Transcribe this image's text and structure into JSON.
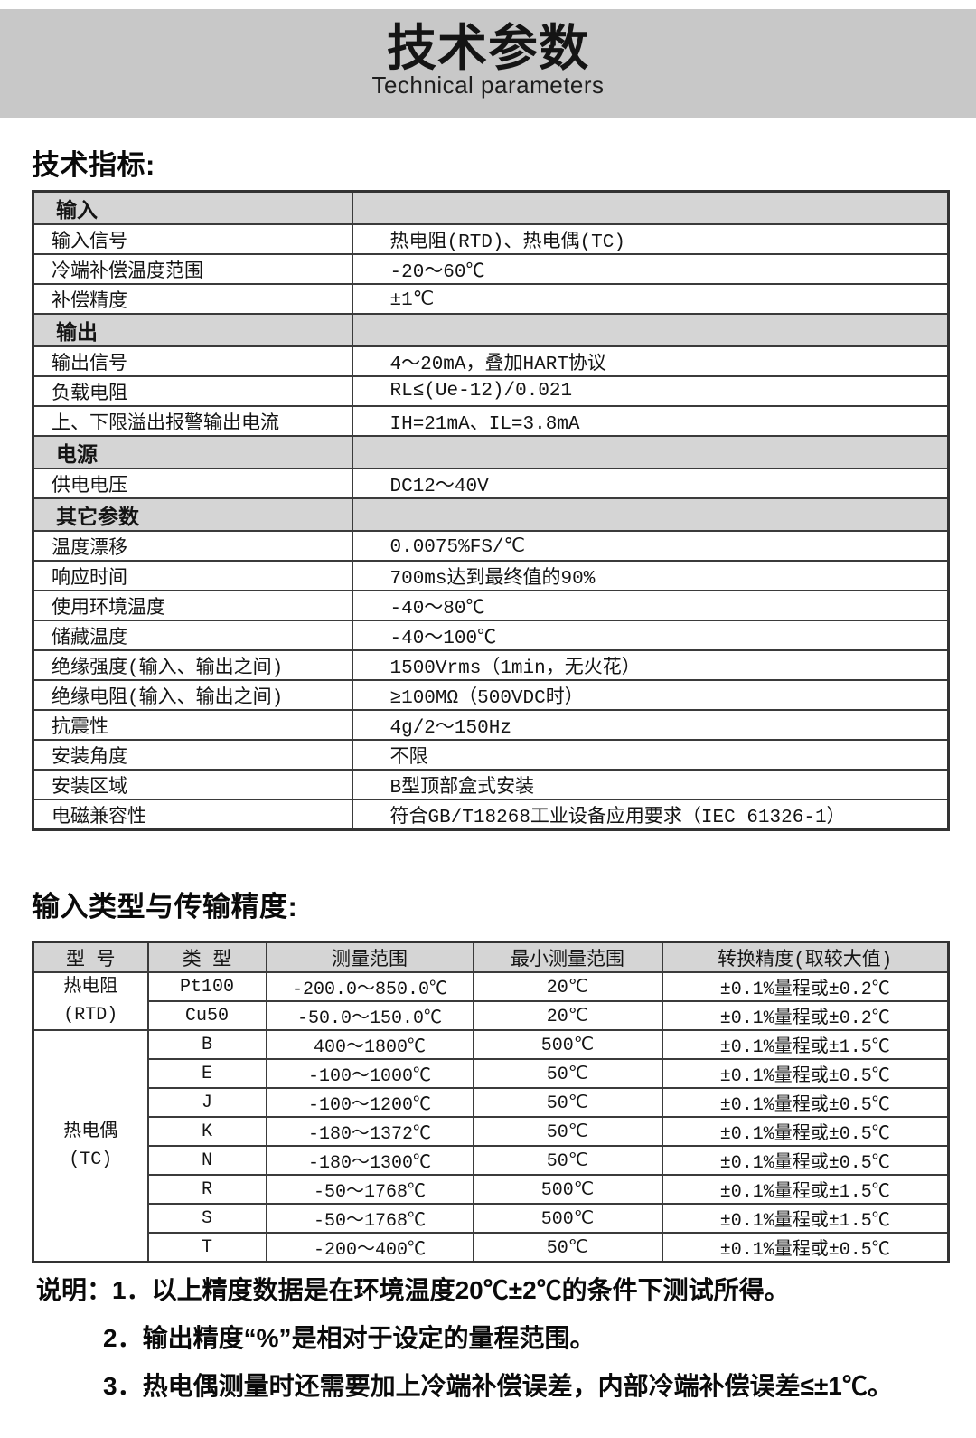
{
  "banner": {
    "title": "技术参数",
    "subtitle": "Technical parameters"
  },
  "headings": {
    "specs": "技术指标:",
    "accuracy": "输入类型与传输精度:"
  },
  "spec_table": {
    "sections": [
      {
        "header": "输入",
        "rows": [
          {
            "label": "输入信号",
            "value": "热电阻(RTD)、热电偶(TC)"
          },
          {
            "label": "冷端补偿温度范围",
            "value": "-20～60℃"
          },
          {
            "label": "补偿精度",
            "value": "±1℃"
          }
        ]
      },
      {
        "header": "输出",
        "rows": [
          {
            "label": "输出信号",
            "value": "4～20mA，叠加HART协议"
          },
          {
            "label": "负载电阻",
            "value": "RL≤(Ue-12)/0.021"
          },
          {
            "label": "上、下限溢出报警输出电流",
            "value": "IH=21mA、IL=3.8mA"
          }
        ]
      },
      {
        "header": "电源",
        "rows": [
          {
            "label": "供电电压",
            "value": "DC12～40V"
          }
        ]
      },
      {
        "header": "其它参数",
        "rows": [
          {
            "label": "温度漂移",
            "value": "0.0075%FS/℃"
          },
          {
            "label": "响应时间",
            "value": "700ms达到最终值的90%"
          },
          {
            "label": "使用环境温度",
            "value": "-40～80℃"
          },
          {
            "label": "储藏温度",
            "value": "-40～100℃"
          },
          {
            "label": "绝缘强度(输入、输出之间)",
            "value": "1500Vrms（1min，无火花）"
          },
          {
            "label": "绝缘电阻(输入、输出之间)",
            "value": "≥100MΩ（500VDC时）"
          },
          {
            "label": "抗震性",
            "value": "4g/2～150Hz"
          },
          {
            "label": "安装角度",
            "value": "不限"
          },
          {
            "label": "安装区域",
            "value": "B型顶部盒式安装"
          },
          {
            "label": "电磁兼容性",
            "value": "符合GB/T18268工业设备应用要求（IEC 61326-1）"
          }
        ]
      }
    ]
  },
  "accuracy_table": {
    "headers": [
      "型 号",
      "类 型",
      "测量范围",
      "最小测量范围",
      "转换精度(取较大值)"
    ],
    "groups": [
      {
        "model_lines": [
          "热电阻",
          "(RTD)"
        ],
        "rows": [
          {
            "type": "Pt100",
            "range": "-200.0～850.0℃",
            "min_range": "20℃",
            "accuracy": "±0.1%量程或±0.2℃"
          },
          {
            "type": "Cu50",
            "range": "-50.0～150.0℃",
            "min_range": "20℃",
            "accuracy": "±0.1%量程或±0.2℃"
          }
        ]
      },
      {
        "model_lines": [
          "热电偶",
          "(TC)"
        ],
        "rows": [
          {
            "type": "B",
            "range": "400～1800℃",
            "min_range": "500℃",
            "accuracy": "±0.1%量程或±1.5℃"
          },
          {
            "type": "E",
            "range": "-100～1000℃",
            "min_range": "50℃",
            "accuracy": "±0.1%量程或±0.5℃"
          },
          {
            "type": "J",
            "range": "-100～1200℃",
            "min_range": "50℃",
            "accuracy": "±0.1%量程或±0.5℃"
          },
          {
            "type": "K",
            "range": "-180～1372℃",
            "min_range": "50℃",
            "accuracy": "±0.1%量程或±0.5℃"
          },
          {
            "type": "N",
            "range": "-180～1300℃",
            "min_range": "50℃",
            "accuracy": "±0.1%量程或±0.5℃"
          },
          {
            "type": "R",
            "range": "-50～1768℃",
            "min_range": "500℃",
            "accuracy": "±0.1%量程或±1.5℃"
          },
          {
            "type": "S",
            "range": "-50～1768℃",
            "min_range": "500℃",
            "accuracy": "±0.1%量程或±1.5℃"
          },
          {
            "type": "T",
            "range": "-200～400℃",
            "min_range": "50℃",
            "accuracy": "±0.1%量程或±0.5℃"
          }
        ]
      }
    ]
  },
  "notes": {
    "label": "说明：",
    "items": [
      "1．以上精度数据是在环境温度20℃±2℃的条件下测试所得。",
      "2．输出精度“%”是相对于设定的量程范围。",
      "3．热电偶测量时还需要加上冷端补偿误差，内部冷端补偿误差≤±1℃。"
    ]
  },
  "colors": {
    "banner_bg": "#c8c8c8",
    "table_header_bg": "#d5d5d5",
    "border": "#3b3b3b",
    "text": "#141414"
  }
}
